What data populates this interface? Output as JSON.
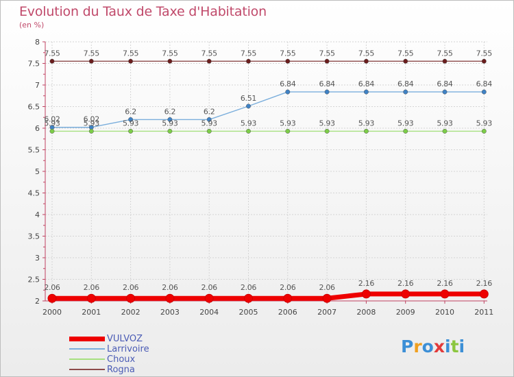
{
  "header": {
    "title": "Evolution du Taux de Taxe d'Habitation",
    "subtitle": "(en %)"
  },
  "brand": {
    "name": "Proxiti",
    "letters": [
      "P",
      "r",
      "o",
      "x",
      "i",
      "t",
      "i"
    ],
    "letter_colors": [
      "#3c8fd6",
      "#f0a020",
      "#3c8fd6",
      "#e23a3a",
      "#3c8fd6",
      "#8cc63f",
      "#3c8fd6"
    ]
  },
  "chart_data": {
    "type": "line",
    "title": "Evolution du Taux de Taxe d'Habitation",
    "ylabel": "(en %)",
    "xlabel": "",
    "x": [
      "2000",
      "2001",
      "2002",
      "2003",
      "2004",
      "2005",
      "2006",
      "2007",
      "2008",
      "2009",
      "2010",
      "2011"
    ],
    "ylim": [
      2,
      8
    ],
    "yticks": [
      "2",
      "2.5",
      "3",
      "3.5",
      "4",
      "4.5",
      "5",
      "5.5",
      "6",
      "6.5",
      "7",
      "7.5",
      "8"
    ],
    "grid": true,
    "legend_position": "bottom-left",
    "series": [
      {
        "name": "VULVOZ",
        "color": "#ee0000",
        "emphasis": true,
        "values": [
          2.06,
          2.06,
          2.06,
          2.06,
          2.06,
          2.06,
          2.06,
          2.06,
          2.16,
          2.16,
          2.16,
          2.16
        ],
        "labels": [
          "2.06",
          "2.06",
          "2.06",
          "2.06",
          "2.06",
          "2.06",
          "2.06",
          "2.06",
          "2.16",
          "2.16",
          "2.16",
          "2.16"
        ]
      },
      {
        "name": "Larrivoire",
        "color": "#7aaedc",
        "point_color": "#3f82c5",
        "values": [
          6.02,
          6.02,
          6.2,
          6.2,
          6.2,
          6.51,
          6.84,
          6.84,
          6.84,
          6.84,
          6.84,
          6.84
        ],
        "labels": [
          "6.02",
          "6.02",
          "6.2",
          "6.2",
          "6.2",
          "6.51",
          "6.84",
          "6.84",
          "6.84",
          "6.84",
          "6.84",
          "6.84"
        ]
      },
      {
        "name": "Choux",
        "color": "#a6e07f",
        "point_color": "#7ccc48",
        "values": [
          5.93,
          5.93,
          5.93,
          5.93,
          5.93,
          5.93,
          5.93,
          5.93,
          5.93,
          5.93,
          5.93,
          5.93
        ],
        "labels": [
          "5.93",
          "5.93",
          "5.93",
          "5.93",
          "5.93",
          "5.93",
          "5.93",
          "5.93",
          "5.93",
          "5.93",
          "5.93",
          "5.93"
        ]
      },
      {
        "name": "Rogna",
        "color": "#8c4a4a",
        "point_color": "#6a1d1d",
        "values": [
          7.55,
          7.55,
          7.55,
          7.55,
          7.55,
          7.55,
          7.55,
          7.55,
          7.55,
          7.55,
          7.55,
          7.55
        ],
        "labels": [
          "7.55",
          "7.55",
          "7.55",
          "7.55",
          "7.55",
          "7.55",
          "7.55",
          "7.55",
          "7.55",
          "7.55",
          "7.55",
          "7.55"
        ]
      }
    ]
  }
}
